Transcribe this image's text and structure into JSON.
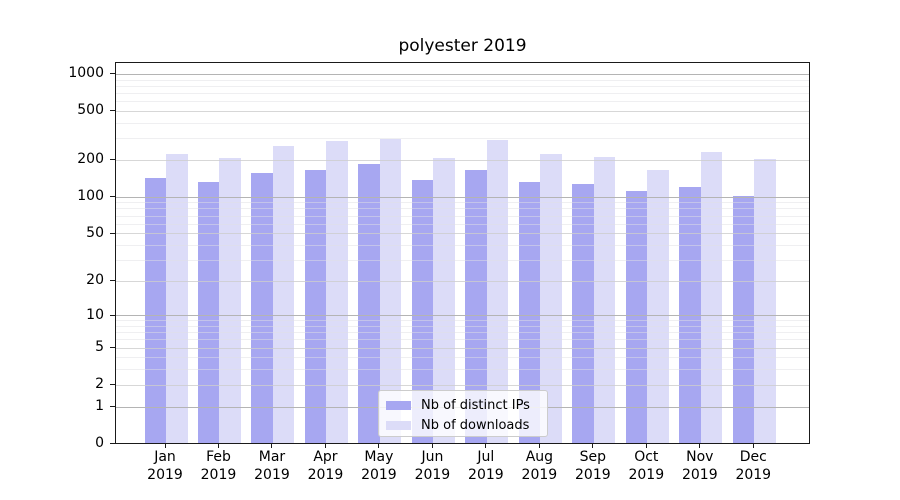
{
  "chart_data": {
    "type": "bar",
    "title": "polyester 2019",
    "categories": [
      "Jan",
      "Feb",
      "Mar",
      "Apr",
      "May",
      "Jun",
      "Jul",
      "Aug",
      "Sep",
      "Oct",
      "Nov",
      "Dec"
    ],
    "x_tick_second_line": "2019",
    "series": [
      {
        "name": "Nb of distinct IPs",
        "color": "#a7a7f1",
        "values": [
          140,
          130,
          155,
          165,
          185,
          135,
          163,
          130,
          125,
          110,
          120,
          100
        ]
      },
      {
        "name": "Nb of downloads",
        "color": "#dcdcf8",
        "values": [
          220,
          205,
          255,
          280,
          295,
          205,
          285,
          220,
          210,
          165,
          230,
          200
        ]
      }
    ],
    "yscale": "log1p",
    "ylim": [
      0,
      1250
    ],
    "yticks": [
      0,
      1,
      2,
      5,
      10,
      20,
      50,
      100,
      200,
      500,
      1000
    ],
    "grid": true,
    "legend_position": "lower-center",
    "xlabel": "",
    "ylabel": ""
  }
}
